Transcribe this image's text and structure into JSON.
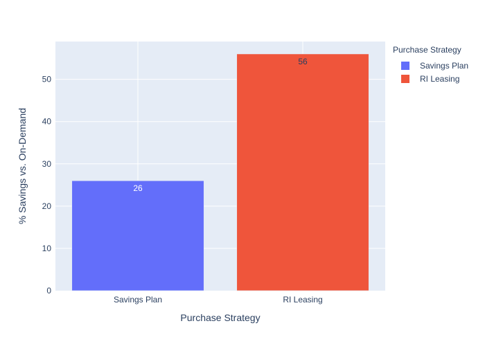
{
  "chart_data": {
    "type": "bar",
    "categories": [
      "Savings Plan",
      "RI Leasing"
    ],
    "values": [
      26,
      56
    ],
    "text_labels": [
      "26",
      "56"
    ],
    "colors": [
      "#636efa",
      "#ef553b"
    ],
    "label_colors": [
      "#ffffff",
      "#2a3f5f"
    ],
    "xlabel": "Purchase Strategy",
    "ylabel": "% Savings vs. On-Demand",
    "ylim": [
      0,
      58.947
    ],
    "yticks": [
      0,
      10,
      20,
      30,
      40,
      50
    ],
    "grid": true,
    "legend": {
      "title": "Purchase Strategy",
      "placement": "top-right",
      "entries": [
        "Savings Plan",
        "RI Leasing"
      ]
    }
  }
}
